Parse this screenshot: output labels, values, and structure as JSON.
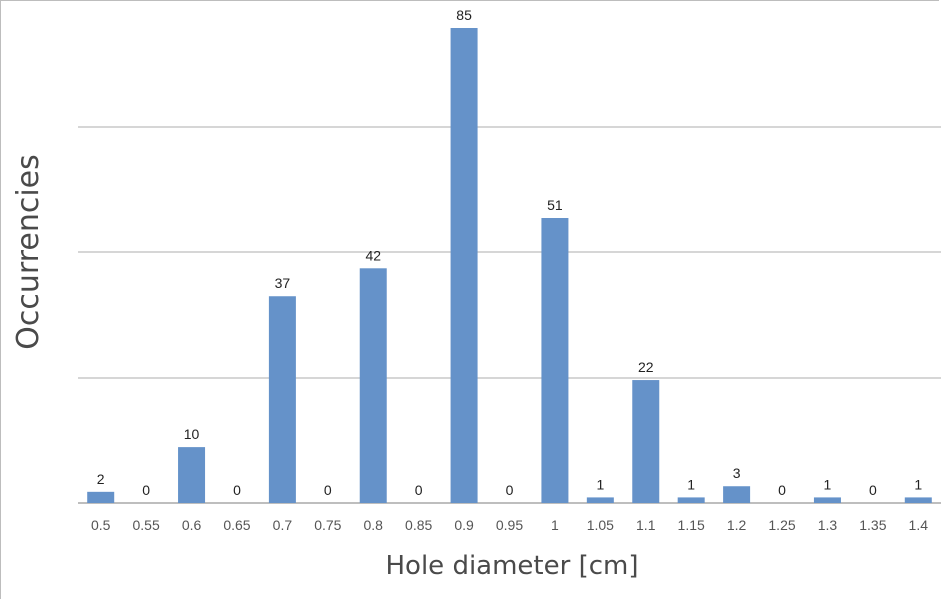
{
  "chart_data": {
    "type": "bar",
    "title": "",
    "xlabel": "Hole diameter [cm]",
    "ylabel": "Occurrencies",
    "categories": [
      "0.5",
      "0.55",
      "0.6",
      "0.65",
      "0.7",
      "0.75",
      "0.8",
      "0.85",
      "0.9",
      "0.95",
      "1",
      "1.05",
      "1.1",
      "1.15",
      "1.2",
      "1.25",
      "1.3",
      "1.35",
      "1.4"
    ],
    "values": [
      2,
      0,
      10,
      0,
      37,
      0,
      42,
      0,
      85,
      0,
      51,
      1,
      22,
      1,
      3,
      0,
      1,
      0,
      1
    ],
    "data_labels": [
      "2",
      "0",
      "10",
      "0",
      "37",
      "0",
      "42",
      "0",
      "85",
      "0",
      "51",
      "1",
      "22",
      "1",
      "3",
      "0",
      "1",
      "0",
      "1"
    ],
    "ylim": [
      0,
      85
    ],
    "grid": true,
    "legend": "none",
    "bar_color": "#6592c9"
  }
}
